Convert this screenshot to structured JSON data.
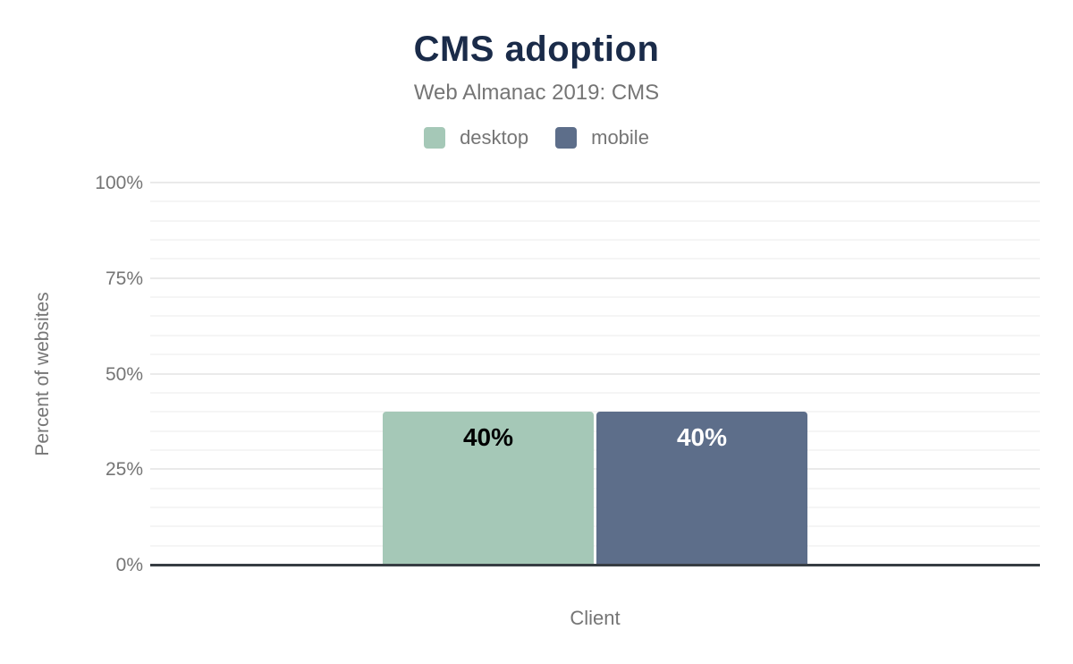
{
  "chart": {
    "title": "CMS adoption",
    "subtitle": "Web Almanac 2019: CMS",
    "legend": {
      "items": [
        {
          "label": "desktop",
          "color": "#a5c8b7"
        },
        {
          "label": "mobile",
          "color": "#5d6e8a"
        }
      ]
    },
    "y_axis": {
      "label": "Percent of websites",
      "ticks": [
        {
          "label": "100%",
          "value": 100
        },
        {
          "label": "75%",
          "value": 75
        },
        {
          "label": "50%",
          "value": 50
        },
        {
          "label": "25%",
          "value": 25
        },
        {
          "label": "0%",
          "value": 0
        }
      ]
    },
    "x_axis": {
      "label": "Client"
    }
  },
  "chart_data": {
    "type": "bar",
    "title": "CMS adoption",
    "subtitle": "Web Almanac 2019: CMS",
    "categories": [
      "Client"
    ],
    "series": [
      {
        "name": "desktop",
        "values": [
          40
        ],
        "color": "#a5c8b7",
        "data_labels": [
          "40%"
        ],
        "data_label_color": "#000000"
      },
      {
        "name": "mobile",
        "values": [
          40
        ],
        "color": "#5d6e8a",
        "data_labels": [
          "40%"
        ],
        "data_label_color": "#ffffff"
      }
    ],
    "xlabel": "Client",
    "ylabel": "Percent of websites",
    "ylim": [
      0,
      100
    ],
    "ytick_major_step": 25,
    "ytick_minor_step": 5,
    "grid": true,
    "legend_position": "top",
    "axis_color": "#373d43",
    "title_color": "#1a2b49",
    "text_color": "#757575"
  }
}
